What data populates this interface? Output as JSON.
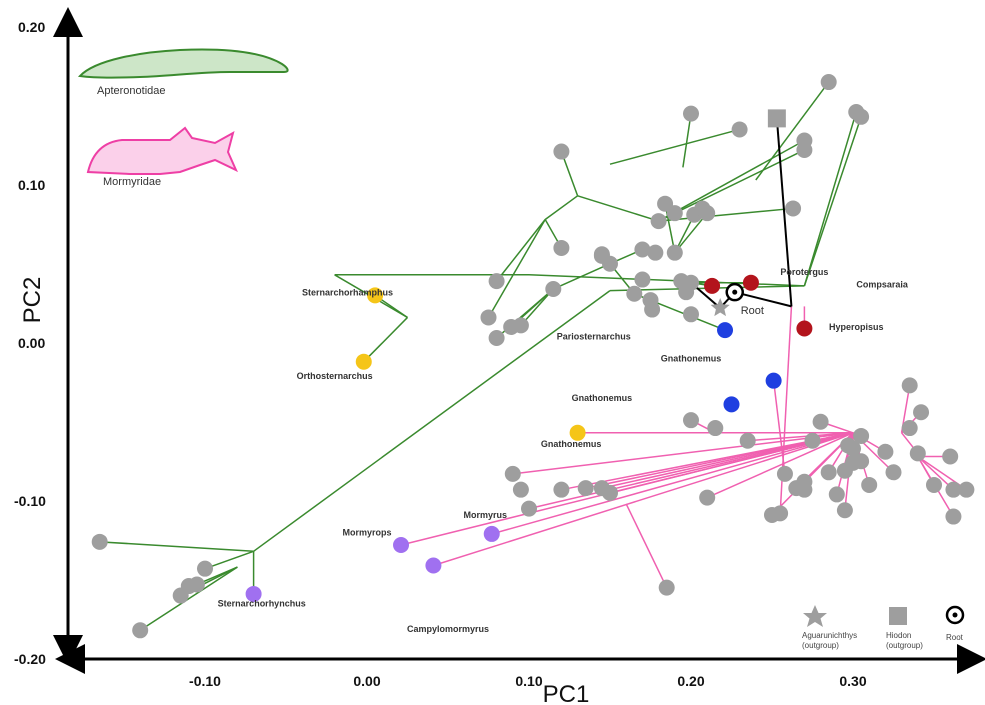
{
  "chart_data": {
    "type": "scatter",
    "title": "",
    "xlabel": "PC1",
    "ylabel": "PC2",
    "xlim": [
      -0.18,
      0.37
    ],
    "ylim": [
      -0.2,
      0.2
    ],
    "x_ticks": [
      "-0.10",
      "0.00",
      "0.10",
      "0.20",
      "0.30"
    ],
    "y_ticks": [
      "0.20",
      "0.10",
      "0.00",
      "-0.10",
      "-0.20"
    ],
    "clade_labels": [
      "Apteronotidae",
      "Mormyridae"
    ],
    "colors": {
      "apteronotidae_branch": "#3a8a2e",
      "mormyridae_branch": "#f060b0",
      "root_branch": "#000000",
      "tip_gray": "#9e9e9e",
      "yellow": "#f5c518",
      "red": "#b3141c",
      "blue": "#1f3fe0",
      "purple": "#a070f0"
    },
    "root": {
      "x": 0.227,
      "y": 0.029,
      "label": "Root"
    },
    "outgroups": {
      "aguarunichthys": {
        "x": 0.218,
        "y": 0.019
      },
      "hiodon": {
        "x": 0.253,
        "y": 0.139
      }
    },
    "points": [
      {
        "x": -0.165,
        "y": -0.129,
        "c": "gray"
      },
      {
        "x": -0.14,
        "y": -0.185,
        "c": "gray"
      },
      {
        "x": -0.115,
        "y": -0.163,
        "c": "gray"
      },
      {
        "x": -0.105,
        "y": -0.156,
        "c": "gray"
      },
      {
        "x": -0.11,
        "y": -0.157,
        "c": "gray"
      },
      {
        "x": -0.1,
        "y": -0.146,
        "c": "gray"
      },
      {
        "x": 0.075,
        "y": 0.013,
        "c": "gray"
      },
      {
        "x": 0.08,
        "y": 0.0,
        "c": "gray"
      },
      {
        "x": 0.08,
        "y": 0.036,
        "c": "gray"
      },
      {
        "x": 0.089,
        "y": 0.007,
        "c": "gray"
      },
      {
        "x": 0.095,
        "y": 0.008,
        "c": "gray"
      },
      {
        "x": 0.115,
        "y": 0.031,
        "c": "gray"
      },
      {
        "x": 0.12,
        "y": 0.118,
        "c": "gray"
      },
      {
        "x": 0.145,
        "y": 0.052,
        "c": "gray"
      },
      {
        "x": 0.145,
        "y": 0.053,
        "c": "gray"
      },
      {
        "x": 0.15,
        "y": 0.047,
        "c": "gray"
      },
      {
        "x": 0.17,
        "y": 0.037,
        "c": "gray"
      },
      {
        "x": 0.178,
        "y": 0.054,
        "c": "gray"
      },
      {
        "x": 0.17,
        "y": 0.056,
        "c": "gray"
      },
      {
        "x": 0.165,
        "y": 0.028,
        "c": "gray"
      },
      {
        "x": 0.175,
        "y": 0.024,
        "c": "gray"
      },
      {
        "x": 0.176,
        "y": 0.018,
        "c": "gray"
      },
      {
        "x": 0.12,
        "y": 0.057,
        "c": "gray"
      },
      {
        "x": 0.18,
        "y": 0.074,
        "c": "gray"
      },
      {
        "x": 0.184,
        "y": 0.085,
        "c": "gray"
      },
      {
        "x": 0.19,
        "y": 0.079,
        "c": "gray"
      },
      {
        "x": 0.19,
        "y": 0.054,
        "c": "gray"
      },
      {
        "x": 0.197,
        "y": 0.029,
        "c": "gray"
      },
      {
        "x": 0.2,
        "y": 0.015,
        "c": "gray"
      },
      {
        "x": 0.202,
        "y": 0.078,
        "c": "gray"
      },
      {
        "x": 0.207,
        "y": 0.082,
        "c": "gray"
      },
      {
        "x": 0.21,
        "y": 0.079,
        "c": "gray"
      },
      {
        "x": 0.2,
        "y": 0.035,
        "c": "gray"
      },
      {
        "x": 0.194,
        "y": 0.036,
        "c": "gray"
      },
      {
        "x": 0.2,
        "y": 0.142,
        "c": "gray"
      },
      {
        "x": 0.23,
        "y": 0.132,
        "c": "gray"
      },
      {
        "x": 0.263,
        "y": 0.082,
        "c": "gray"
      },
      {
        "x": 0.27,
        "y": 0.125,
        "c": "gray"
      },
      {
        "x": 0.27,
        "y": 0.119,
        "c": "gray"
      },
      {
        "x": 0.285,
        "y": 0.162,
        "c": "gray"
      },
      {
        "x": 0.302,
        "y": 0.143,
        "c": "gray"
      },
      {
        "x": 0.305,
        "y": 0.14,
        "c": "gray"
      },
      {
        "x": 0.09,
        "y": -0.086,
        "c": "gray"
      },
      {
        "x": 0.095,
        "y": -0.096,
        "c": "gray"
      },
      {
        "x": 0.1,
        "y": -0.108,
        "c": "gray"
      },
      {
        "x": 0.12,
        "y": -0.096,
        "c": "gray"
      },
      {
        "x": 0.135,
        "y": -0.095,
        "c": "gray"
      },
      {
        "x": 0.145,
        "y": -0.095,
        "c": "gray"
      },
      {
        "x": 0.15,
        "y": -0.098,
        "c": "gray"
      },
      {
        "x": 0.185,
        "y": -0.158,
        "c": "gray"
      },
      {
        "x": 0.2,
        "y": -0.052,
        "c": "gray"
      },
      {
        "x": 0.21,
        "y": -0.101,
        "c": "gray"
      },
      {
        "x": 0.215,
        "y": -0.057,
        "c": "gray"
      },
      {
        "x": 0.235,
        "y": -0.065,
        "c": "gray"
      },
      {
        "x": 0.25,
        "y": -0.112,
        "c": "gray"
      },
      {
        "x": 0.255,
        "y": -0.111,
        "c": "gray"
      },
      {
        "x": 0.258,
        "y": -0.086,
        "c": "gray"
      },
      {
        "x": 0.265,
        "y": -0.095,
        "c": "gray"
      },
      {
        "x": 0.27,
        "y": -0.091,
        "c": "gray"
      },
      {
        "x": 0.275,
        "y": -0.065,
        "c": "gray"
      },
      {
        "x": 0.27,
        "y": -0.096,
        "c": "gray"
      },
      {
        "x": 0.28,
        "y": -0.053,
        "c": "gray"
      },
      {
        "x": 0.285,
        "y": -0.085,
        "c": "gray"
      },
      {
        "x": 0.29,
        "y": -0.099,
        "c": "gray"
      },
      {
        "x": 0.295,
        "y": -0.084,
        "c": "gray"
      },
      {
        "x": 0.297,
        "y": -0.068,
        "c": "gray"
      },
      {
        "x": 0.3,
        "y": -0.07,
        "c": "gray"
      },
      {
        "x": 0.295,
        "y": -0.109,
        "c": "gray"
      },
      {
        "x": 0.3,
        "y": -0.079,
        "c": "gray"
      },
      {
        "x": 0.305,
        "y": -0.062,
        "c": "gray"
      },
      {
        "x": 0.305,
        "y": -0.078,
        "c": "gray"
      },
      {
        "x": 0.31,
        "y": -0.093,
        "c": "gray"
      },
      {
        "x": 0.32,
        "y": -0.072,
        "c": "gray"
      },
      {
        "x": 0.325,
        "y": -0.085,
        "c": "gray"
      },
      {
        "x": 0.335,
        "y": -0.03,
        "c": "gray"
      },
      {
        "x": 0.335,
        "y": -0.057,
        "c": "gray"
      },
      {
        "x": 0.34,
        "y": -0.073,
        "c": "gray"
      },
      {
        "x": 0.342,
        "y": -0.047,
        "c": "gray"
      },
      {
        "x": 0.35,
        "y": -0.093,
        "c": "gray"
      },
      {
        "x": 0.36,
        "y": -0.075,
        "c": "gray"
      },
      {
        "x": 0.362,
        "y": -0.096,
        "c": "gray"
      },
      {
        "x": 0.362,
        "y": -0.113,
        "c": "gray"
      },
      {
        "x": 0.37,
        "y": -0.096,
        "c": "gray"
      },
      {
        "x": 0.005,
        "y": 0.027,
        "c": "yellow"
      },
      {
        "x": -0.002,
        "y": -0.015,
        "c": "yellow"
      },
      {
        "x": 0.13,
        "y": -0.06,
        "c": "yellow"
      },
      {
        "x": 0.213,
        "y": 0.033,
        "c": "red"
      },
      {
        "x": 0.237,
        "y": 0.035,
        "c": "red"
      },
      {
        "x": 0.27,
        "y": 0.006,
        "c": "red"
      },
      {
        "x": 0.221,
        "y": 0.005,
        "c": "blue"
      },
      {
        "x": 0.251,
        "y": -0.027,
        "c": "blue"
      },
      {
        "x": 0.225,
        "y": -0.042,
        "c": "blue"
      },
      {
        "x": -0.07,
        "y": -0.162,
        "c": "purple"
      },
      {
        "x": 0.021,
        "y": -0.131,
        "c": "purple"
      },
      {
        "x": 0.077,
        "y": -0.124,
        "c": "purple"
      },
      {
        "x": 0.041,
        "y": -0.144,
        "c": "purple"
      }
    ],
    "branches_green": [
      [
        0.27,
        0.033,
        0.1,
        0.04
      ],
      [
        0.1,
        0.04,
        -0.02,
        0.04
      ],
      [
        -0.02,
        0.04,
        0.025,
        0.013
      ],
      [
        0.025,
        0.013,
        0.005,
        0.027
      ],
      [
        0.025,
        0.013,
        -0.002,
        -0.015
      ],
      [
        0.27,
        0.033,
        0.15,
        0.03
      ],
      [
        0.15,
        0.03,
        -0.07,
        -0.135
      ],
      [
        -0.07,
        -0.135,
        -0.165,
        -0.129
      ],
      [
        -0.08,
        -0.145,
        -0.14,
        -0.185
      ],
      [
        -0.07,
        -0.135,
        -0.07,
        -0.162
      ],
      [
        -0.07,
        -0.135,
        -0.1,
        -0.146
      ],
      [
        -0.08,
        -0.145,
        -0.115,
        -0.163
      ],
      [
        -0.08,
        -0.145,
        -0.105,
        -0.156
      ],
      [
        0.27,
        0.033,
        0.305,
        0.14
      ],
      [
        0.27,
        0.033,
        0.302,
        0.143
      ],
      [
        0.18,
        0.074,
        0.27,
        0.125
      ],
      [
        0.18,
        0.074,
        0.263,
        0.082
      ],
      [
        0.18,
        0.074,
        0.27,
        0.119
      ],
      [
        0.285,
        0.162,
        0.24,
        0.1
      ],
      [
        0.2,
        0.142,
        0.195,
        0.108
      ],
      [
        0.23,
        0.132,
        0.15,
        0.11
      ],
      [
        0.12,
        0.118,
        0.13,
        0.09
      ],
      [
        0.13,
        0.09,
        0.18,
        0.074
      ],
      [
        0.13,
        0.09,
        0.11,
        0.075
      ],
      [
        0.11,
        0.075,
        0.08,
        0.036
      ],
      [
        0.11,
        0.075,
        0.12,
        0.057
      ],
      [
        0.11,
        0.075,
        0.075,
        0.013
      ],
      [
        0.15,
        0.047,
        0.145,
        0.052
      ],
      [
        0.15,
        0.047,
        0.145,
        0.053
      ],
      [
        0.15,
        0.047,
        0.17,
        0.056
      ],
      [
        0.15,
        0.047,
        0.165,
        0.028
      ],
      [
        0.165,
        0.028,
        0.221,
        0.005
      ],
      [
        0.15,
        0.047,
        0.115,
        0.031
      ],
      [
        0.115,
        0.031,
        0.08,
        0.0
      ],
      [
        0.115,
        0.031,
        0.089,
        0.007
      ],
      [
        0.115,
        0.031,
        0.095,
        0.008
      ],
      [
        0.2,
        0.035,
        0.213,
        0.033
      ],
      [
        0.2,
        0.035,
        0.237,
        0.035
      ],
      [
        0.19,
        0.054,
        0.21,
        0.079
      ],
      [
        0.19,
        0.054,
        0.202,
        0.078
      ],
      [
        0.19,
        0.054,
        0.184,
        0.085
      ]
    ],
    "branches_pink": [
      [
        0.27,
        0.02,
        0.27,
        0.006
      ],
      [
        0.262,
        0.02,
        0.255,
        -0.112
      ],
      [
        0.251,
        -0.027,
        0.258,
        -0.086
      ],
      [
        0.3,
        -0.06,
        0.13,
        -0.06
      ],
      [
        0.3,
        -0.06,
        0.021,
        -0.131
      ],
      [
        0.3,
        -0.06,
        0.077,
        -0.124
      ],
      [
        0.3,
        -0.06,
        0.041,
        -0.144
      ],
      [
        0.3,
        -0.06,
        0.12,
        -0.096
      ],
      [
        0.3,
        -0.06,
        0.09,
        -0.086
      ],
      [
        0.3,
        -0.06,
        0.1,
        -0.108
      ],
      [
        0.3,
        -0.06,
        0.15,
        -0.098
      ],
      [
        0.3,
        -0.06,
        0.135,
        -0.095
      ],
      [
        0.3,
        -0.06,
        0.145,
        -0.095
      ],
      [
        0.16,
        -0.105,
        0.185,
        -0.158
      ],
      [
        0.2,
        -0.052,
        0.215,
        -0.06
      ],
      [
        0.3,
        -0.06,
        0.21,
        -0.101
      ],
      [
        0.3,
        -0.06,
        0.235,
        -0.065
      ],
      [
        0.3,
        -0.06,
        0.25,
        -0.112
      ],
      [
        0.3,
        -0.06,
        0.265,
        -0.095
      ],
      [
        0.3,
        -0.06,
        0.27,
        -0.091
      ],
      [
        0.3,
        -0.06,
        0.275,
        -0.065
      ],
      [
        0.3,
        -0.06,
        0.28,
        -0.053
      ],
      [
        0.3,
        -0.06,
        0.285,
        -0.085
      ],
      [
        0.3,
        -0.06,
        0.29,
        -0.099
      ],
      [
        0.3,
        -0.06,
        0.295,
        -0.084
      ],
      [
        0.3,
        -0.06,
        0.297,
        -0.068
      ],
      [
        0.3,
        -0.06,
        0.3,
        -0.07
      ],
      [
        0.3,
        -0.06,
        0.295,
        -0.109
      ],
      [
        0.3,
        -0.06,
        0.3,
        -0.079
      ],
      [
        0.3,
        -0.06,
        0.305,
        -0.062
      ],
      [
        0.3,
        -0.06,
        0.305,
        -0.078
      ],
      [
        0.3,
        -0.06,
        0.31,
        -0.093
      ],
      [
        0.3,
        -0.06,
        0.32,
        -0.072
      ],
      [
        0.3,
        -0.06,
        0.325,
        -0.085
      ],
      [
        0.33,
        -0.06,
        0.335,
        -0.03
      ],
      [
        0.33,
        -0.06,
        0.335,
        -0.057
      ],
      [
        0.33,
        -0.06,
        0.34,
        -0.073
      ],
      [
        0.33,
        -0.06,
        0.342,
        -0.047
      ],
      [
        0.34,
        -0.075,
        0.35,
        -0.093
      ],
      [
        0.34,
        -0.075,
        0.36,
        -0.075
      ],
      [
        0.34,
        -0.075,
        0.362,
        -0.096
      ],
      [
        0.34,
        -0.075,
        0.37,
        -0.096
      ],
      [
        0.34,
        -0.075,
        0.362,
        -0.113
      ]
    ],
    "branches_root": [
      [
        0.227,
        0.029,
        0.262,
        0.02
      ],
      [
        0.262,
        0.02,
        0.253,
        0.139
      ],
      [
        0.227,
        0.029,
        0.218,
        0.019
      ],
      [
        0.218,
        0.019,
        0.2,
        0.035
      ]
    ],
    "annotations": [
      {
        "text": "Sternarchorhamphus",
        "x": -0.012,
        "y": 0.027
      },
      {
        "text": "Orthosternarchus",
        "x": -0.02,
        "y": -0.026
      },
      {
        "text": "Pariosternarchus",
        "x": 0.14,
        "y": -0.001
      },
      {
        "text": "Gnathonemus",
        "x": 0.145,
        "y": -0.04
      },
      {
        "text": "Gnathonemus",
        "x": 0.126,
        "y": -0.069
      },
      {
        "text": "Gnathonemus",
        "x": 0.2,
        "y": -0.015
      },
      {
        "text": "Porotergus",
        "x": 0.27,
        "y": 0.04
      },
      {
        "text": "Compsaraia",
        "x": 0.318,
        "y": 0.032
      },
      {
        "text": "Hyperopisus",
        "x": 0.302,
        "y": 0.005
      },
      {
        "text": "Mormyrus",
        "x": 0.073,
        "y": -0.114
      },
      {
        "text": "Mormyrops",
        "x": 0.0,
        "y": -0.125
      },
      {
        "text": "Sternarchorhynchus",
        "x": -0.065,
        "y": -0.17
      },
      {
        "text": "Campylomormyrus",
        "x": 0.05,
        "y": -0.186
      }
    ],
    "legend": [
      {
        "label": "Aguarunichthys\n(outgroup)",
        "shape": "star"
      },
      {
        "label": "Hiodon\n(outgroup)",
        "shape": "square"
      },
      {
        "label": "Root",
        "shape": "root"
      }
    ]
  }
}
